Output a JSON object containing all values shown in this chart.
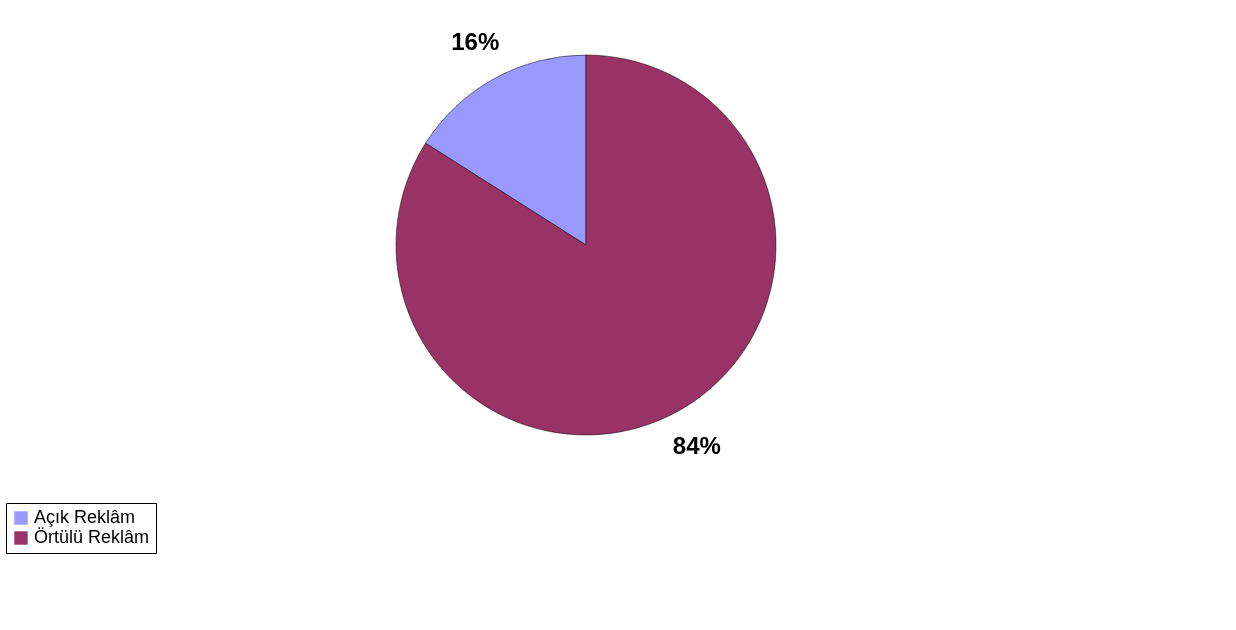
{
  "chart_data": {
    "type": "pie",
    "categories": [
      "Açık Reklâm",
      "Örtülü Reklâm"
    ],
    "values": [
      16,
      84
    ],
    "colors": [
      "#9999ff",
      "#993366"
    ],
    "value_labels": [
      "16%",
      "84%"
    ],
    "legend": "bottom"
  }
}
